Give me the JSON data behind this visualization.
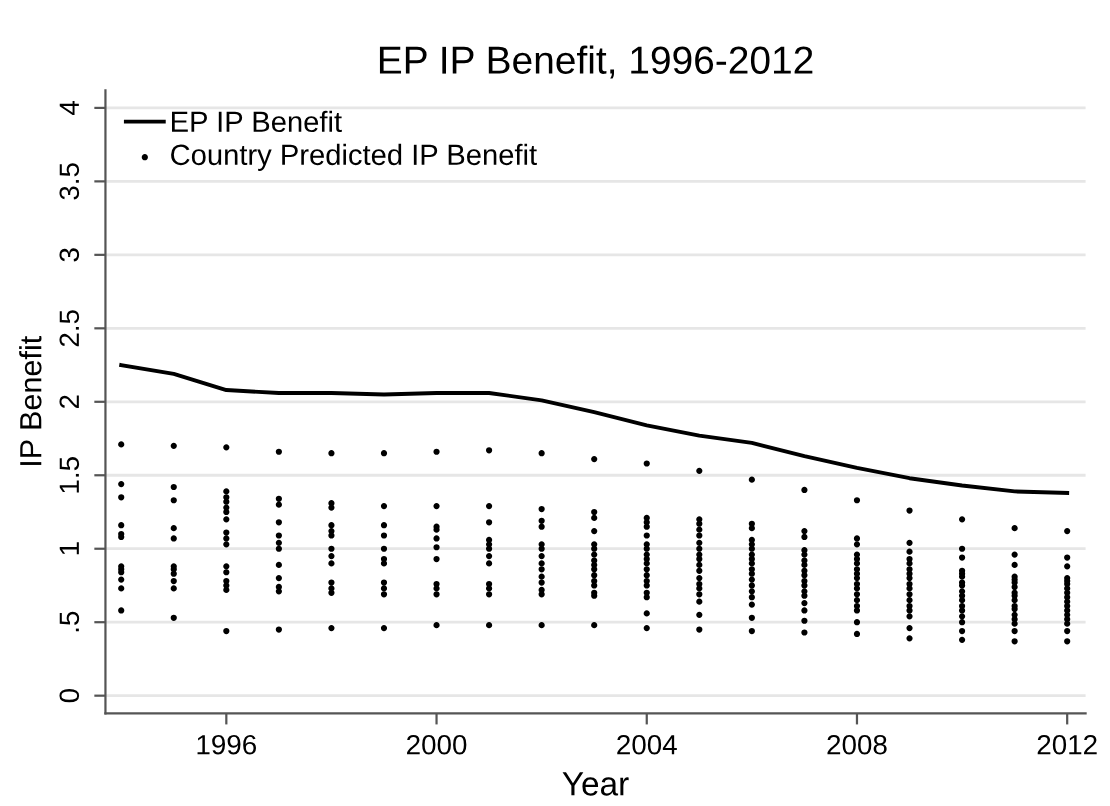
{
  "chart_data": {
    "type": "line",
    "title": "EP IP Benefit, 1996-2012",
    "xlabel": "Year",
    "ylabel": "IP Benefit",
    "xlim": [
      1993.7,
      2012.35
    ],
    "xticks": [
      1996,
      2000,
      2004,
      2008,
      2012
    ],
    "ylim": [
      -0.12,
      4.12
    ],
    "yticks": [
      0,
      {
        "value": 0.5,
        "label": ".5"
      },
      1,
      1.5,
      2,
      2.5,
      3,
      3.5,
      4
    ],
    "grid": "y",
    "legend": "top left",
    "series": [
      {
        "name": "EP IP Benefit",
        "color": "#000000",
        "marker": "none",
        "line_style": "solid",
        "x": [
          1994,
          1995,
          1996,
          1997,
          1998,
          1999,
          2000,
          2001,
          2002,
          2003,
          2004,
          2005,
          2006,
          2007,
          2008,
          2009,
          2010,
          2011,
          2012
        ],
        "values": [
          2.25,
          2.19,
          2.08,
          2.06,
          2.06,
          2.05,
          2.06,
          2.06,
          2.01,
          1.93,
          1.84,
          1.77,
          1.72,
          1.63,
          1.55,
          1.48,
          1.43,
          1.39,
          1.38
        ]
      },
      {
        "name": "Country Predicted IP Benefit",
        "type": "scatter",
        "color": "#000000",
        "marker": "circle",
        "x": [
          1994,
          1994,
          1994,
          1994,
          1994,
          1994,
          1994,
          1994,
          1994,
          1994,
          1994,
          1994,
          1995,
          1995,
          1995,
          1995,
          1995,
          1995,
          1995,
          1995,
          1995,
          1995,
          1995,
          1996,
          1996,
          1996,
          1996,
          1996,
          1996,
          1996,
          1996,
          1996,
          1996,
          1996,
          1996,
          1996,
          1996,
          1996,
          1996,
          1997,
          1997,
          1997,
          1997,
          1997,
          1997,
          1997,
          1997,
          1997,
          1997,
          1997,
          1997,
          1998,
          1998,
          1998,
          1998,
          1998,
          1998,
          1998,
          1998,
          1998,
          1998,
          1998,
          1998,
          1998,
          1999,
          1999,
          1999,
          1999,
          1999,
          1999,
          1999,
          1999,
          1999,
          1999,
          1999,
          2000,
          2000,
          2000,
          2000,
          2000,
          2000,
          2000,
          2000,
          2000,
          2000,
          2000,
          2001,
          2001,
          2001,
          2001,
          2001,
          2001,
          2001,
          2001,
          2001,
          2001,
          2001,
          2001,
          2002,
          2002,
          2002,
          2002,
          2002,
          2002,
          2002,
          2002,
          2002,
          2002,
          2002,
          2002,
          2002,
          2002,
          2003,
          2003,
          2003,
          2003,
          2003,
          2003,
          2003,
          2003,
          2003,
          2003,
          2003,
          2003,
          2003,
          2003,
          2003,
          2003,
          2004,
          2004,
          2004,
          2004,
          2004,
          2004,
          2004,
          2004,
          2004,
          2004,
          2004,
          2004,
          2004,
          2004,
          2004,
          2004,
          2004,
          2004,
          2005,
          2005,
          2005,
          2005,
          2005,
          2005,
          2005,
          2005,
          2005,
          2005,
          2005,
          2005,
          2005,
          2005,
          2005,
          2005,
          2005,
          2005,
          2006,
          2006,
          2006,
          2006,
          2006,
          2006,
          2006,
          2006,
          2006,
          2006,
          2006,
          2006,
          2006,
          2006,
          2006,
          2006,
          2006,
          2006,
          2007,
          2007,
          2007,
          2007,
          2007,
          2007,
          2007,
          2007,
          2007,
          2007,
          2007,
          2007,
          2007,
          2007,
          2007,
          2007,
          2007,
          2008,
          2008,
          2008,
          2008,
          2008,
          2008,
          2008,
          2008,
          2008,
          2008,
          2008,
          2008,
          2008,
          2008,
          2008,
          2008,
          2008,
          2009,
          2009,
          2009,
          2009,
          2009,
          2009,
          2009,
          2009,
          2009,
          2009,
          2009,
          2009,
          2009,
          2009,
          2009,
          2009,
          2009,
          2010,
          2010,
          2010,
          2010,
          2010,
          2010,
          2010,
          2010,
          2010,
          2010,
          2010,
          2010,
          2010,
          2010,
          2010,
          2010,
          2010,
          2011,
          2011,
          2011,
          2011,
          2011,
          2011,
          2011,
          2011,
          2011,
          2011,
          2011,
          2011,
          2011,
          2011,
          2011,
          2011,
          2011,
          2012,
          2012,
          2012,
          2012,
          2012,
          2012,
          2012,
          2012,
          2012,
          2012,
          2012,
          2012,
          2012,
          2012,
          2012,
          2012,
          2012
        ],
        "values": [
          1.71,
          1.44,
          1.35,
          1.16,
          1.1,
          1.08,
          0.88,
          0.86,
          0.84,
          0.79,
          0.73,
          0.58,
          1.7,
          1.42,
          1.33,
          1.14,
          1.07,
          0.88,
          0.86,
          0.83,
          0.78,
          0.73,
          0.53,
          1.69,
          1.39,
          1.35,
          1.32,
          1.28,
          1.25,
          1.2,
          1.11,
          1.07,
          1.03,
          0.88,
          0.84,
          0.78,
          0.75,
          0.72,
          0.44,
          1.66,
          1.34,
          1.3,
          1.18,
          1.09,
          1.04,
          1.0,
          0.89,
          0.8,
          0.74,
          0.71,
          0.45,
          1.65,
          1.31,
          1.28,
          1.16,
          1.12,
          1.09,
          1.0,
          0.95,
          0.9,
          0.77,
          0.73,
          0.7,
          0.46,
          1.65,
          1.29,
          1.16,
          1.09,
          1.0,
          0.93,
          0.9,
          0.77,
          0.73,
          0.69,
          0.46,
          1.66,
          1.29,
          1.15,
          1.13,
          1.07,
          1.01,
          0.93,
          0.76,
          0.73,
          0.69,
          0.48,
          1.67,
          1.29,
          1.18,
          1.06,
          1.03,
          1.0,
          0.95,
          0.9,
          0.76,
          0.73,
          0.69,
          0.48,
          1.65,
          1.27,
          1.19,
          1.15,
          1.03,
          1.0,
          0.95,
          0.9,
          0.86,
          0.81,
          0.77,
          0.72,
          0.69,
          0.48,
          1.61,
          1.25,
          1.21,
          1.12,
          1.03,
          1.0,
          0.96,
          0.92,
          0.89,
          0.86,
          0.82,
          0.78,
          0.75,
          0.7,
          0.68,
          0.48,
          1.58,
          1.21,
          1.18,
          1.15,
          1.09,
          1.03,
          1.0,
          0.96,
          0.93,
          0.9,
          0.86,
          0.82,
          0.78,
          0.75,
          0.7,
          0.67,
          0.56,
          0.46,
          1.53,
          1.2,
          1.17,
          1.13,
          1.09,
          1.04,
          1.0,
          0.96,
          0.93,
          0.89,
          0.85,
          0.8,
          0.76,
          0.73,
          0.69,
          0.64,
          0.55,
          0.45,
          1.47,
          1.17,
          1.14,
          1.06,
          1.03,
          1.0,
          0.96,
          0.93,
          0.9,
          0.86,
          0.83,
          0.79,
          0.75,
          0.71,
          0.67,
          0.62,
          0.53,
          0.44,
          1.4,
          1.12,
          1.08,
          0.99,
          0.96,
          0.92,
          0.89,
          0.85,
          0.82,
          0.78,
          0.75,
          0.71,
          0.68,
          0.63,
          0.58,
          0.51,
          0.43,
          1.33,
          1.07,
          1.03,
          0.96,
          0.93,
          0.9,
          0.86,
          0.83,
          0.8,
          0.76,
          0.73,
          0.69,
          0.65,
          0.61,
          0.58,
          0.5,
          0.42,
          1.26,
          1.04,
          0.98,
          0.93,
          0.9,
          0.86,
          0.83,
          0.8,
          0.76,
          0.73,
          0.69,
          0.65,
          0.61,
          0.58,
          0.54,
          0.46,
          0.39,
          1.2,
          1.0,
          0.94,
          0.85,
          0.83,
          0.81,
          0.77,
          0.75,
          0.71,
          0.68,
          0.65,
          0.61,
          0.58,
          0.54,
          0.5,
          0.44,
          0.38,
          1.14,
          0.96,
          0.89,
          0.81,
          0.79,
          0.77,
          0.74,
          0.7,
          0.68,
          0.65,
          0.61,
          0.59,
          0.55,
          0.52,
          0.49,
          0.44,
          0.37,
          1.12,
          0.94,
          0.88,
          0.8,
          0.78,
          0.76,
          0.73,
          0.7,
          0.67,
          0.64,
          0.61,
          0.58,
          0.55,
          0.52,
          0.49,
          0.44,
          0.37
        ]
      }
    ]
  }
}
